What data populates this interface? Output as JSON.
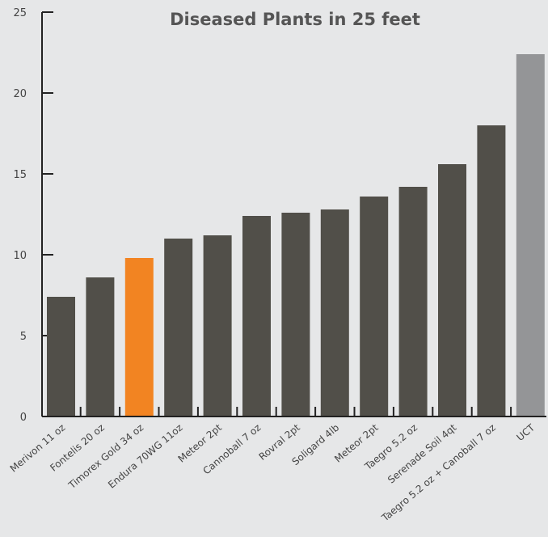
{
  "chart_data": {
    "type": "bar",
    "title": "Diseased Plants in 25 feet",
    "xlabel": "",
    "ylabel": "",
    "ylim": [
      0,
      25
    ],
    "yticks": [
      0,
      5,
      10,
      15,
      20,
      25
    ],
    "grid": false,
    "legend": "none",
    "categories": [
      "Merivon 11 oz",
      "Fontelis 20 oz",
      "Timorex Gold 34 oz",
      "Endura 70WG 11oz",
      "Meteor 2pt",
      "Cannoball 7 oz",
      "Rovral 2pt",
      "Soligard 4lb",
      "Meteor 2pt",
      "Taegro 5.2 oz",
      "Serenade Soil 4qt",
      "Taegro 5.2 oz + Canoball 7 oz",
      "UCT"
    ],
    "values": [
      7.4,
      8.6,
      9.8,
      11.0,
      11.2,
      12.4,
      12.6,
      12.8,
      13.6,
      14.2,
      15.6,
      18.0,
      22.4
    ],
    "bar_colors": [
      "#514f49",
      "#514f49",
      "#f28422",
      "#514f49",
      "#514f49",
      "#514f49",
      "#514f49",
      "#514f49",
      "#514f49",
      "#514f49",
      "#514f49",
      "#514f49",
      "#949597"
    ],
    "axis_color": "#222222",
    "background": "#e6e7e8"
  }
}
